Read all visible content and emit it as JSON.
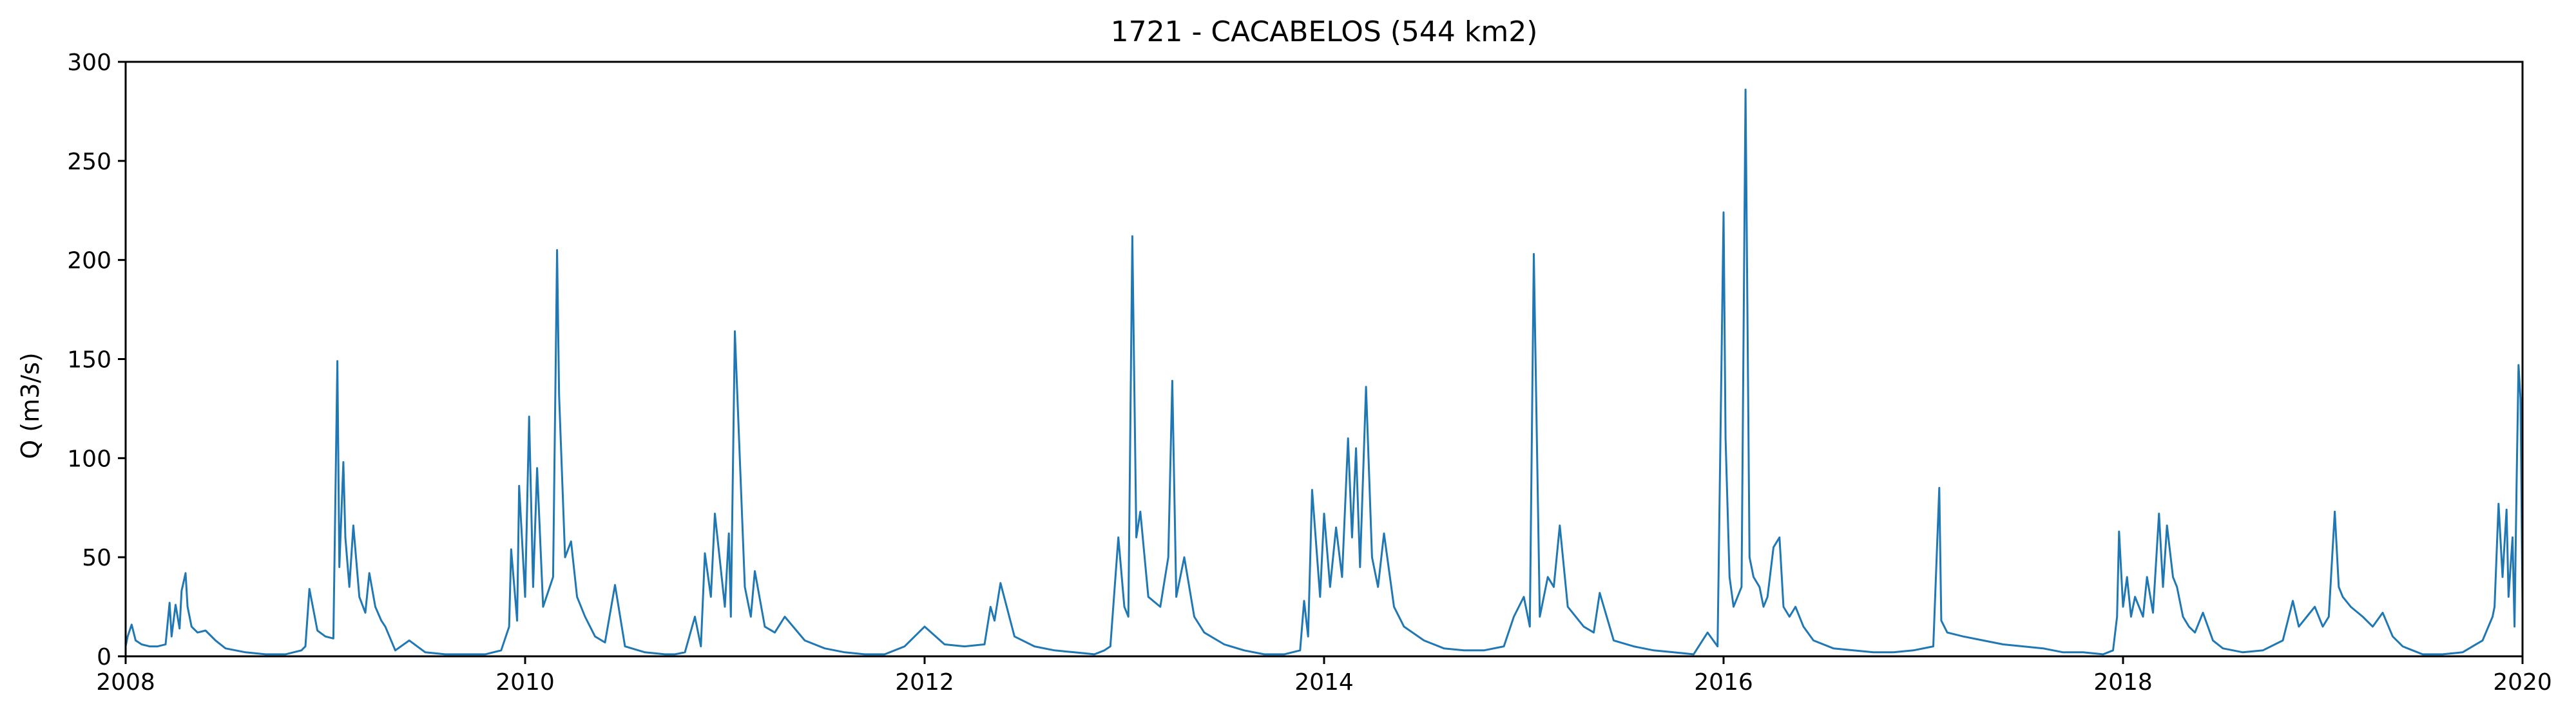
{
  "chart_data": {
    "type": "line",
    "title": "1721 - CACABELOS (544 km2)",
    "xlabel": "",
    "ylabel": "Q (m3/s)",
    "xlim": [
      2008,
      2020
    ],
    "ylim": [
      0,
      300
    ],
    "x_ticks": [
      "2008",
      "2010",
      "2012",
      "2014",
      "2016",
      "2018",
      "2020"
    ],
    "y_ticks": [
      "0",
      "50",
      "100",
      "150",
      "200",
      "250",
      "300"
    ],
    "grid": false,
    "legend": "none",
    "line_color": "#1f77b4",
    "series": [
      {
        "x": [
          2008.0,
          2008.01,
          2008.03,
          2008.05,
          2008.08,
          2008.12,
          2008.16,
          2008.2,
          2008.22,
          2008.23,
          2008.25,
          2008.27,
          2008.28,
          2008.3,
          2008.31,
          2008.33,
          2008.36,
          2008.4,
          2008.45,
          2008.5,
          2008.6,
          2008.7,
          2008.8,
          2008.88,
          2008.9,
          2008.92,
          2008.96,
          2009.0,
          2009.04,
          2009.06,
          2009.07,
          2009.09,
          2009.1,
          2009.12,
          2009.14,
          2009.17,
          2009.2,
          2009.22,
          2009.25,
          2009.28,
          2009.3,
          2009.35,
          2009.42,
          2009.5,
          2009.6,
          2009.7,
          2009.8,
          2009.88,
          2009.92,
          2009.93,
          2009.96,
          2009.97,
          2010.0,
          2010.02,
          2010.04,
          2010.06,
          2010.09,
          2010.14,
          2010.16,
          2010.17,
          2010.2,
          2010.23,
          2010.26,
          2010.3,
          2010.35,
          2010.4,
          2010.45,
          2010.5,
          2010.6,
          2010.7,
          2010.75,
          2010.8,
          2010.85,
          2010.88,
          2010.9,
          2010.93,
          2010.95,
          2011.0,
          2011.02,
          2011.03,
          2011.05,
          2011.1,
          2011.13,
          2011.15,
          2011.2,
          2011.25,
          2011.3,
          2011.4,
          2011.5,
          2011.6,
          2011.7,
          2011.8,
          2011.9,
          2011.95,
          2012.0,
          2012.1,
          2012.2,
          2012.3,
          2012.33,
          2012.35,
          2012.38,
          2012.45,
          2012.55,
          2012.65,
          2012.75,
          2012.85,
          2012.9,
          2012.93,
          2012.97,
          2013.0,
          2013.02,
          2013.04,
          2013.06,
          2013.08,
          2013.12,
          2013.18,
          2013.22,
          2013.24,
          2013.26,
          2013.3,
          2013.35,
          2013.4,
          2013.5,
          2013.6,
          2013.7,
          2013.8,
          2013.88,
          2013.9,
          2013.92,
          2013.94,
          2013.98,
          2014.0,
          2014.03,
          2014.06,
          2014.09,
          2014.12,
          2014.14,
          2014.16,
          2014.18,
          2014.21,
          2014.24,
          2014.27,
          2014.3,
          2014.35,
          2014.4,
          2014.5,
          2014.6,
          2014.7,
          2014.8,
          2014.9,
          2014.95,
          2015.0,
          2015.03,
          2015.05,
          2015.08,
          2015.12,
          2015.15,
          2015.18,
          2015.22,
          2015.3,
          2015.35,
          2015.38,
          2015.45,
          2015.55,
          2015.65,
          2015.75,
          2015.85,
          2015.92,
          2015.97,
          2016.0,
          2016.01,
          2016.03,
          2016.05,
          2016.07,
          2016.09,
          2016.11,
          2016.13,
          2016.15,
          2016.18,
          2016.2,
          2016.22,
          2016.25,
          2016.28,
          2016.3,
          2016.33,
          2016.36,
          2016.4,
          2016.45,
          2016.55,
          2016.65,
          2016.75,
          2016.85,
          2016.95,
          2017.05,
          2017.08,
          2017.09,
          2017.12,
          2017.2,
          2017.3,
          2017.4,
          2017.5,
          2017.6,
          2017.7,
          2017.8,
          2017.9,
          2017.95,
          2017.97,
          2017.98,
          2018.0,
          2018.02,
          2018.04,
          2018.06,
          2018.08,
          2018.1,
          2018.12,
          2018.15,
          2018.18,
          2018.2,
          2018.22,
          2018.25,
          2018.27,
          2018.3,
          2018.33,
          2018.36,
          2018.4,
          2018.45,
          2018.5,
          2018.6,
          2018.7,
          2018.8,
          2018.85,
          2018.88,
          2018.92,
          2018.96,
          2019.0,
          2019.03,
          2019.06,
          2019.08,
          2019.1,
          2019.14,
          2019.2,
          2019.25,
          2019.3,
          2019.35,
          2019.4,
          2019.45,
          2019.5,
          2019.6,
          2019.7,
          2019.75,
          2019.8,
          2019.85,
          2019.86,
          2019.88,
          2019.9,
          2019.92,
          2019.93,
          2019.95,
          2019.96,
          2019.97,
          2019.98,
          2019.99,
          2020.0
        ],
        "values": [
          5,
          10,
          16,
          8,
          6,
          5,
          5,
          6,
          27,
          10,
          26,
          14,
          33,
          42,
          25,
          15,
          12,
          13,
          8,
          4,
          2,
          1,
          1,
          3,
          5,
          34,
          13,
          10,
          9,
          149,
          45,
          98,
          60,
          35,
          66,
          30,
          22,
          42,
          25,
          18,
          15,
          3,
          8,
          2,
          1,
          1,
          1,
          3,
          15,
          54,
          18,
          86,
          30,
          121,
          35,
          95,
          25,
          40,
          205,
          132,
          50,
          58,
          30,
          20,
          10,
          7,
          36,
          5,
          2,
          1,
          1,
          2,
          20,
          5,
          52,
          30,
          72,
          25,
          62,
          20,
          164,
          35,
          20,
          43,
          15,
          12,
          20,
          8,
          4,
          2,
          1,
          1,
          5,
          10,
          15,
          6,
          5,
          6,
          25,
          18,
          37,
          10,
          5,
          3,
          2,
          1,
          3,
          5,
          60,
          25,
          20,
          212,
          60,
          73,
          30,
          25,
          50,
          139,
          30,
          50,
          20,
          12,
          6,
          3,
          1,
          1,
          3,
          28,
          10,
          84,
          30,
          72,
          35,
          65,
          40,
          110,
          60,
          105,
          45,
          136,
          50,
          35,
          62,
          25,
          15,
          8,
          4,
          3,
          3,
          5,
          20,
          30,
          15,
          203,
          20,
          40,
          35,
          66,
          25,
          15,
          12,
          32,
          8,
          5,
          3,
          2,
          1,
          12,
          5,
          224,
          110,
          40,
          25,
          30,
          35,
          286,
          50,
          40,
          35,
          25,
          30,
          55,
          60,
          25,
          20,
          25,
          15,
          8,
          4,
          3,
          2,
          2,
          3,
          5,
          85,
          18,
          12,
          10,
          8,
          6,
          5,
          4,
          2,
          2,
          1,
          3,
          20,
          63,
          25,
          40,
          20,
          30,
          25,
          20,
          40,
          22,
          72,
          35,
          66,
          40,
          35,
          20,
          15,
          12,
          22,
          8,
          4,
          2,
          3,
          8,
          28,
          15,
          20,
          25,
          15,
          20,
          73,
          35,
          30,
          25,
          20,
          15,
          22,
          10,
          5,
          3,
          1,
          1,
          2,
          5,
          8,
          20,
          25,
          77,
          40,
          74,
          30,
          60,
          15,
          85,
          147,
          130,
          25
        ]
      }
    ]
  }
}
